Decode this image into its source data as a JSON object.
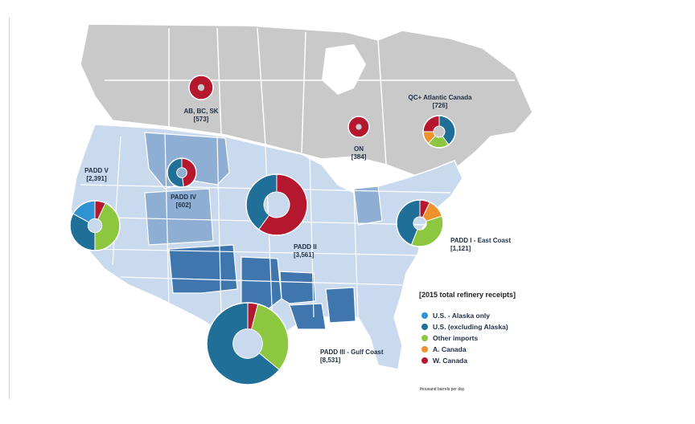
{
  "colors": {
    "us_alaska": "#2f93d3",
    "us_excl_alaska": "#1f6f98",
    "other_imports": "#8dc63f",
    "a_canada": "#f0922b",
    "w_canada": "#b5172e",
    "canada_land": "#c9c9c9",
    "us_light": "#c9d9ee",
    "us_medium": "#8eaed4",
    "us_dark": "#3f76ad",
    "borders": "#ffffff"
  },
  "regions": [
    {
      "key": "ab_bc_sk",
      "label": "AB, BC, SK",
      "value": "[573]",
      "slices": [
        {
          "cat": "w_canada",
          "share": 1.0
        }
      ]
    },
    {
      "key": "on",
      "label": "ON",
      "value": "[384]",
      "slices": [
        {
          "cat": "w_canada",
          "share": 1.0
        }
      ]
    },
    {
      "key": "qc_atlantic",
      "label": "QC+ Atlantic Canada",
      "value": "[726]",
      "slices": [
        {
          "cat": "us_excl_alaska",
          "share": 0.4
        },
        {
          "cat": "other_imports",
          "share": 0.22
        },
        {
          "cat": "a_canada",
          "share": 0.13
        },
        {
          "cat": "w_canada",
          "share": 0.25
        }
      ]
    },
    {
      "key": "padd_iv",
      "label": "PADD IV",
      "value": "[602]",
      "slices": [
        {
          "cat": "w_canada",
          "share": 0.48
        },
        {
          "cat": "us_excl_alaska",
          "share": 0.52
        }
      ]
    },
    {
      "key": "padd_v",
      "label": "PADD V",
      "value": "[2,391]",
      "slices": [
        {
          "cat": "w_canada",
          "share": 0.07
        },
        {
          "cat": "other_imports",
          "share": 0.43
        },
        {
          "cat": "us_excl_alaska",
          "share": 0.33
        },
        {
          "cat": "us_alaska",
          "share": 0.17
        }
      ]
    },
    {
      "key": "padd_ii",
      "label": "PADD II",
      "value": "[3,561]",
      "slices": [
        {
          "cat": "w_canada",
          "share": 0.6
        },
        {
          "cat": "us_excl_alaska",
          "share": 0.4
        }
      ]
    },
    {
      "key": "padd_i",
      "label": "PADD I - East Coast",
      "value": "[1,121]",
      "slices": [
        {
          "cat": "w_canada",
          "share": 0.07
        },
        {
          "cat": "a_canada",
          "share": 0.13
        },
        {
          "cat": "other_imports",
          "share": 0.36
        },
        {
          "cat": "us_excl_alaska",
          "share": 0.44
        }
      ]
    },
    {
      "key": "padd_iii",
      "label": "PADD III - Gulf Coast",
      "value": "[8,531]",
      "slices": [
        {
          "cat": "w_canada",
          "share": 0.04
        },
        {
          "cat": "other_imports",
          "share": 0.32
        },
        {
          "cat": "us_excl_alaska",
          "share": 0.64
        }
      ]
    }
  ],
  "legend": {
    "title": "[2015 total refinery receipts]",
    "items": [
      {
        "cat": "us_alaska",
        "label": "U.S. - Alaska only"
      },
      {
        "cat": "us_excl_alaska",
        "label": "U.S. (excluding Alaska)"
      },
      {
        "cat": "other_imports",
        "label": "Other imports"
      },
      {
        "cat": "a_canada",
        "label": "A. Canada"
      },
      {
        "cat": "w_canada",
        "label": "W. Canada"
      }
    ],
    "footnote": "thousand barrels per day"
  }
}
